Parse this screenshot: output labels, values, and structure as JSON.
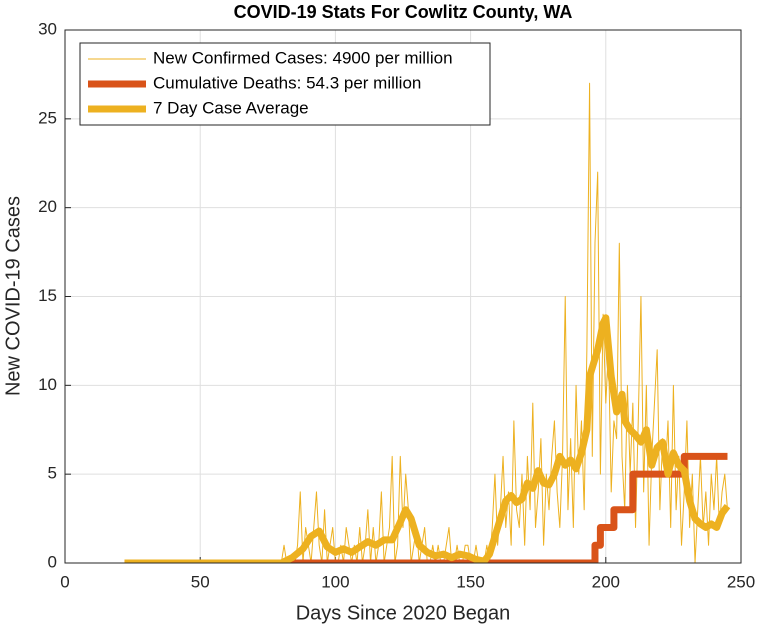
{
  "chart_data": {
    "type": "line",
    "title": "COVID-19 Stats For Cowlitz County, WA",
    "x_label": "Days Since 2020 Began",
    "y_label": "New COVID-19 Cases",
    "xlim": [
      0,
      250
    ],
    "ylim": [
      0,
      30
    ],
    "xticks": [
      0,
      50,
      100,
      150,
      200,
      250
    ],
    "yticks": [
      0,
      5,
      10,
      15,
      20,
      25,
      30
    ],
    "grid": true,
    "legend": "upper left",
    "series": [
      {
        "name": "New Confirmed Cases: 4900 per million",
        "color": "#EDB120",
        "line_width": 1,
        "x": [
          22,
          77,
          78,
          79,
          80,
          81,
          82,
          83,
          84,
          85,
          86,
          87,
          88,
          89,
          90,
          91,
          92,
          93,
          94,
          95,
          96,
          97,
          98,
          99,
          100,
          101,
          102,
          103,
          104,
          105,
          106,
          107,
          108,
          109,
          110,
          111,
          112,
          113,
          114,
          115,
          116,
          117,
          118,
          119,
          120,
          121,
          122,
          123,
          124,
          125,
          126,
          127,
          128,
          129,
          130,
          131,
          132,
          133,
          134,
          135,
          136,
          137,
          138,
          139,
          140,
          141,
          142,
          143,
          144,
          145,
          146,
          147,
          148,
          149,
          150,
          151,
          152,
          153,
          154,
          155,
          156,
          157,
          158,
          159,
          160,
          161,
          162,
          163,
          164,
          165,
          166,
          167,
          168,
          169,
          170,
          171,
          172,
          173,
          174,
          175,
          176,
          177,
          178,
          179,
          180,
          181,
          182,
          183,
          184,
          185,
          186,
          187,
          188,
          189,
          190,
          191,
          192,
          193,
          194,
          195,
          196,
          197,
          198,
          199,
          200,
          201,
          202,
          203,
          204,
          205,
          206,
          207,
          208,
          209,
          210,
          211,
          212,
          213,
          214,
          215,
          216,
          217,
          218,
          219,
          220,
          221,
          222,
          223,
          224,
          225,
          226,
          227,
          228,
          229,
          230,
          231,
          232,
          233,
          234,
          235,
          236,
          237,
          238,
          239,
          240,
          241,
          242,
          243,
          244,
          245
        ],
        "values": [
          0,
          0,
          0,
          0,
          0,
          1,
          0,
          0,
          0,
          0,
          1,
          4,
          0,
          2,
          1,
          0,
          2,
          4,
          1,
          0,
          3,
          0,
          1,
          2,
          0,
          0,
          1,
          0,
          2,
          1,
          0,
          1,
          0,
          2,
          0,
          1,
          3,
          0,
          2,
          0,
          1,
          4,
          0,
          1,
          2,
          6,
          0,
          1,
          6,
          2,
          5,
          3,
          0,
          1,
          2,
          0,
          1,
          2,
          0,
          0,
          1,
          0,
          1,
          0,
          0,
          1,
          2,
          0,
          0,
          1,
          0,
          0,
          1,
          1,
          0,
          0,
          1,
          0,
          0,
          0,
          1,
          0,
          2,
          5,
          1,
          3,
          6,
          2,
          4,
          1,
          8,
          3,
          2,
          5,
          1,
          6,
          3,
          9,
          2,
          4,
          7,
          1,
          5,
          3,
          6,
          8,
          4,
          2,
          6,
          15,
          3,
          7,
          2,
          10,
          5,
          8,
          3,
          12,
          27,
          6,
          18,
          22,
          5,
          14,
          9,
          12,
          4,
          8,
          7,
          18,
          6,
          3,
          10,
          5,
          9,
          2,
          8,
          15,
          4,
          10,
          1,
          6,
          9,
          12,
          3,
          7,
          5,
          8,
          2,
          10,
          3,
          6,
          1,
          4,
          8,
          2,
          5,
          0,
          3,
          6,
          2,
          4,
          1,
          5,
          3,
          6,
          2,
          4,
          5,
          3
        ]
      },
      {
        "name": "Cumulative Deaths: 54.3 per million",
        "color": "#D95319",
        "line_width": 7,
        "x": [
          22,
          196,
          196,
          198,
          198,
          203,
          203,
          210,
          210,
          229,
          229,
          245
        ],
        "values": [
          0,
          0,
          1,
          1,
          2,
          2,
          3,
          3,
          5,
          5,
          6,
          6
        ]
      },
      {
        "name": "7 Day Case Average",
        "color": "#EDB120",
        "line_width": 7,
        "x": [
          22,
          80,
          84,
          88,
          91,
          94,
          97,
          100,
          103,
          106,
          109,
          112,
          115,
          118,
          121,
          124,
          126,
          128,
          131,
          134,
          137,
          140,
          143,
          146,
          149,
          152,
          155,
          157,
          159,
          161,
          163,
          165,
          167,
          169,
          171,
          173,
          175,
          177,
          179,
          181,
          183,
          185,
          187,
          189,
          191,
          193,
          194,
          195,
          197,
          199,
          200,
          202,
          204,
          206,
          207,
          209,
          211,
          213,
          215,
          217,
          219,
          221,
          223,
          225,
          227,
          229,
          231,
          233,
          235,
          237,
          239,
          241,
          243,
          245
        ],
        "values": [
          0,
          0,
          0.3,
          0.8,
          1.5,
          1.8,
          0.9,
          0.6,
          0.8,
          0.6,
          0.9,
          1.2,
          1.0,
          1.3,
          1.3,
          2.3,
          3.0,
          2.5,
          1.0,
          0.6,
          0.4,
          0.5,
          0.3,
          0.5,
          0.4,
          0.2,
          0.1,
          0.5,
          1.5,
          2.5,
          3.5,
          3.8,
          3.4,
          3.6,
          4.5,
          4.2,
          5.2,
          4.5,
          4.4,
          5.0,
          6.0,
          5.5,
          5.8,
          5.3,
          6.2,
          7.5,
          10.5,
          11.0,
          12.0,
          13.5,
          13.8,
          10.5,
          8.5,
          9.5,
          8.0,
          7.5,
          7.2,
          6.8,
          7.5,
          5.5,
          6.5,
          6.8,
          5.0,
          6.2,
          5.5,
          5.2,
          3.5,
          2.5,
          2.2,
          2.0,
          2.2,
          2.0,
          2.8,
          3.2
        ]
      }
    ]
  }
}
